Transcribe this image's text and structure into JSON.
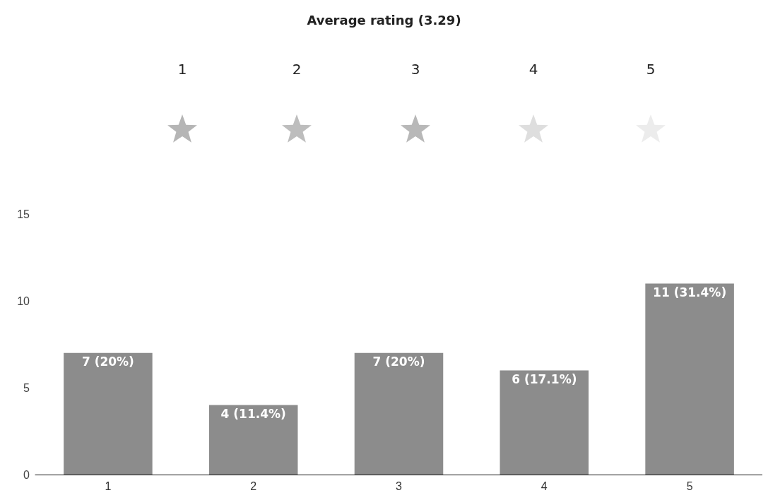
{
  "chart_data": {
    "type": "bar",
    "title": "Average rating (3.29)",
    "categories": [
      "1",
      "2",
      "3",
      "4",
      "5"
    ],
    "values": [
      7,
      4,
      7,
      6,
      11
    ],
    "value_labels": [
      "7 (20%)",
      "4 (11.4%)",
      "7 (20%)",
      "6 (17.1%)",
      "11 (31.4%)"
    ],
    "color": "#8c8c8c",
    "ylim": [
      0,
      15
    ],
    "yticks": [
      0,
      5,
      10,
      15
    ],
    "grid": false,
    "annotations": [
      "1",
      "2",
      "3",
      "4",
      "5"
    ]
  }
}
